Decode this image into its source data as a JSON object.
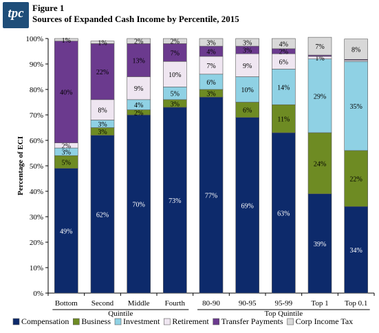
{
  "header": {
    "logo_text": "tpc",
    "figure_label": "Figure 1",
    "title": "Sources of Expanded Cash Income by Percentile, 2015"
  },
  "chart_data": {
    "type": "bar",
    "stacked": true,
    "ylabel": "Percentage of ECI",
    "xlabel": "",
    "ylim": [
      0,
      100
    ],
    "yticks": [
      "0%",
      "10%",
      "20%",
      "30%",
      "40%",
      "50%",
      "60%",
      "70%",
      "80%",
      "90%",
      "100%"
    ],
    "grid": false,
    "legend_position": "bottom",
    "categories": [
      "Bottom",
      "Second",
      "Middle",
      "Fourth",
      "80-90",
      "90-95",
      "95-99",
      "Top 1",
      "Top 0.1"
    ],
    "group_labels": [
      {
        "label": "Quintile",
        "from": 0,
        "to": 3
      },
      {
        "label": "Top Quintile",
        "from": 4,
        "to": 8
      }
    ],
    "series": [
      {
        "name": "Compensation",
        "color": "#0d2a6b",
        "label_color": "#ffffff",
        "values": [
          49,
          62,
          70,
          73,
          77,
          69,
          63,
          39,
          34
        ],
        "labels": [
          "49%",
          "62%",
          "70%",
          "73%",
          "77%",
          "69%",
          "63%",
          "39%",
          "34%"
        ]
      },
      {
        "name": "Business",
        "color": "#6e8b23",
        "label_color": "#000000",
        "values": [
          5,
          3,
          2,
          3,
          3,
          6,
          11,
          24,
          22
        ],
        "labels": [
          "5%",
          "3%",
          "2%",
          "3%",
          "3%",
          "6%",
          "11%",
          "24%",
          "22%"
        ]
      },
      {
        "name": "Investment",
        "color": "#8fd1e4",
        "label_color": "#000000",
        "values": [
          3,
          3,
          4,
          5,
          6,
          10,
          14,
          29,
          35
        ],
        "labels": [
          "3%",
          "3%",
          "4%",
          "5%",
          "6%",
          "10%",
          "14%",
          "29%",
          "35%"
        ]
      },
      {
        "name": "Retirement",
        "color": "#efe6f1",
        "label_color": "#000000",
        "values": [
          2,
          8,
          9,
          10,
          7,
          9,
          6,
          1,
          0.5
        ],
        "labels": [
          "2%",
          "8%",
          "9%",
          "10%",
          "7%",
          "9%",
          "6%",
          "1%",
          ""
        ]
      },
      {
        "name": "Transfer Payments",
        "color": "#6b3a8e",
        "label_color": "#000000",
        "values": [
          40,
          22,
          13,
          7,
          4,
          3,
          2,
          0.5,
          0.3
        ],
        "labels": [
          "40%",
          "22%",
          "13%",
          "7%",
          "4%",
          "3%",
          "2%",
          "",
          ""
        ]
      },
      {
        "name": "Corp Income Tax",
        "color": "#d8d8d8",
        "label_color": "#000000",
        "values": [
          1,
          1,
          2,
          2,
          3,
          3,
          4,
          7,
          8
        ],
        "labels": [
          "1%",
          "1%",
          "2%",
          "2%",
          "3%",
          "3%",
          "4%",
          "7%",
          "8%"
        ]
      }
    ]
  }
}
